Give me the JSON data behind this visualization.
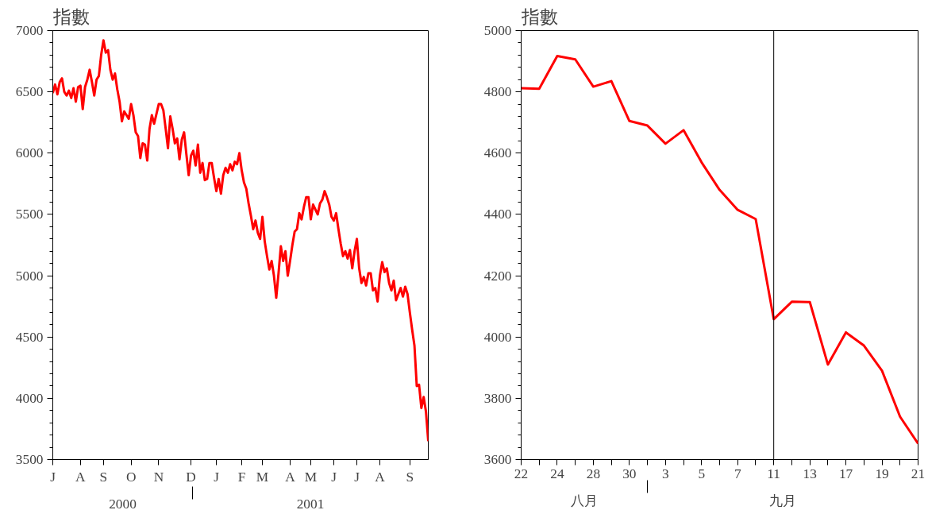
{
  "chart_data": [
    {
      "type": "line",
      "ylabel": "指數",
      "color": "#ff0000",
      "categories": [
        "J",
        null,
        null,
        null,
        null,
        null,
        null,
        null,
        null,
        null,
        null,
        null,
        "A",
        null,
        null,
        null,
        null,
        null,
        null,
        null,
        null,
        null,
        "S",
        null,
        null,
        null,
        null,
        null,
        null,
        null,
        null,
        null,
        null,
        null,
        "O",
        null,
        null,
        null,
        null,
        null,
        null,
        null,
        null,
        null,
        null,
        null,
        "N",
        null,
        null,
        null,
        null,
        null,
        null,
        null,
        null,
        null,
        null,
        null,
        null,
        null,
        "D",
        null,
        null,
        null,
        null,
        null,
        null,
        null,
        null,
        null,
        null,
        "J",
        null,
        null,
        null,
        null,
        null,
        null,
        null,
        null,
        null,
        null,
        "F",
        null,
        null,
        null,
        null,
        null,
        null,
        null,
        null,
        "M",
        null,
        null,
        null,
        null,
        null,
        null,
        null,
        null,
        null,
        null,
        null,
        "A",
        null,
        null,
        null,
        null,
        null,
        null,
        null,
        null,
        "M",
        null,
        null,
        null,
        null,
        null,
        null,
        null,
        null,
        null,
        "J",
        null,
        null,
        null,
        null,
        null,
        null,
        null,
        null,
        null,
        "J",
        null,
        null,
        null,
        null,
        null,
        null,
        null,
        null,
        null,
        "A",
        null,
        null,
        null,
        null,
        null,
        null,
        null,
        null,
        null,
        null,
        null,
        null,
        "S",
        null,
        null,
        null,
        null,
        null,
        null,
        null,
        null
      ],
      "values": [
        6490,
        6560,
        6480,
        6580,
        6610,
        6500,
        6470,
        6510,
        6450,
        6530,
        6420,
        6540,
        6550,
        6360,
        6540,
        6600,
        6680,
        6580,
        6470,
        6600,
        6630,
        6800,
        6920,
        6820,
        6840,
        6680,
        6600,
        6650,
        6520,
        6420,
        6260,
        6340,
        6310,
        6280,
        6400,
        6310,
        6170,
        6140,
        5960,
        6080,
        6070,
        5940,
        6200,
        6310,
        6240,
        6320,
        6400,
        6400,
        6350,
        6200,
        6040,
        6300,
        6200,
        6080,
        6120,
        5950,
        6110,
        6170,
        5990,
        5820,
        5980,
        6020,
        5900,
        6070,
        5840,
        5920,
        5780,
        5790,
        5920,
        5920,
        5800,
        5690,
        5790,
        5670,
        5820,
        5880,
        5840,
        5910,
        5860,
        5930,
        5910,
        6000,
        5860,
        5760,
        5710,
        5590,
        5490,
        5380,
        5450,
        5350,
        5300,
        5480,
        5280,
        5160,
        5050,
        5120,
        5000,
        4820,
        5020,
        5240,
        5120,
        5200,
        5000,
        5120,
        5250,
        5360,
        5380,
        5510,
        5460,
        5560,
        5640,
        5640,
        5460,
        5580,
        5540,
        5500,
        5590,
        5620,
        5690,
        5640,
        5580,
        5480,
        5450,
        5510,
        5380,
        5260,
        5160,
        5200,
        5140,
        5210,
        5060,
        5200,
        5300,
        5060,
        4940,
        4990,
        4920,
        5020,
        5020,
        4880,
        4900,
        4790,
        5000,
        5110,
        5030,
        5060,
        4940,
        4880,
        4960,
        4800,
        4850,
        4900,
        4830,
        4910,
        4850,
        4700,
        4560,
        4430,
        4100,
        4110,
        3920,
        4010,
        3890,
        3650
      ],
      "ylim": [
        3500,
        7000
      ],
      "yticks": [
        3500,
        4000,
        4500,
        5000,
        5500,
        6000,
        6500,
        7000
      ],
      "annotations": [
        "2000",
        "2001"
      ]
    },
    {
      "type": "line",
      "ylabel": "指數",
      "color": "#ff0000",
      "categories": [
        "22",
        null,
        "24",
        null,
        "28",
        null,
        "30",
        null,
        "3",
        null,
        "5",
        null,
        "7",
        null,
        "11",
        null,
        "13",
        null,
        "17",
        null,
        "19",
        null,
        "21"
      ],
      "values": [
        4812,
        4810,
        4917,
        4906,
        4817,
        4835,
        4705,
        4690,
        4631,
        4675,
        4570,
        4480,
        4415,
        4385,
        4058,
        4115,
        4114,
        3910,
        4015,
        3972,
        3890,
        3740,
        3652
      ],
      "ylim": [
        3600,
        5000
      ],
      "yticks": [
        3600,
        3800,
        4000,
        4200,
        4400,
        4600,
        4800,
        5000
      ],
      "ref_lines": [
        {
          "axis": "x",
          "value": "11",
          "color": "#000000"
        }
      ],
      "annotations": [
        "八月",
        "九月"
      ]
    }
  ]
}
